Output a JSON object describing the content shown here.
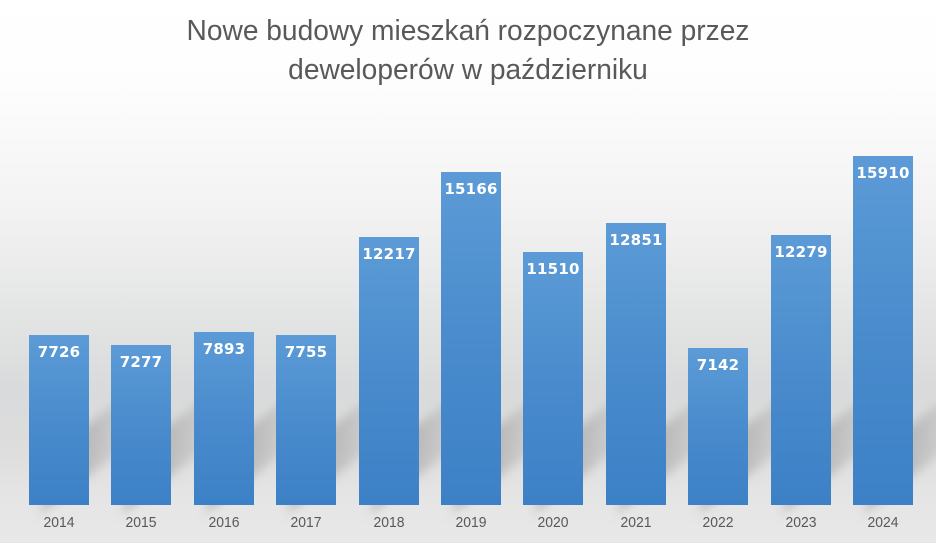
{
  "chart_data": {
    "type": "bar",
    "title": "Nowe budowy mieszkań rozpoczynane przez deweloperów w październiku",
    "title_lines": [
      "Nowe budowy mieszkań rozpoczynane przez",
      "deweloperów w październiku"
    ],
    "categories": [
      "2014",
      "2015",
      "2016",
      "2017",
      "2018",
      "2019",
      "2020",
      "2021",
      "2022",
      "2023",
      "2024"
    ],
    "values": [
      7726,
      7277,
      7893,
      7755,
      12217,
      15166,
      11510,
      12851,
      7142,
      12279,
      15910
    ],
    "series_name": "Nowe budowy mieszkań",
    "xlabel": "",
    "ylabel": "",
    "ylim": [
      0,
      16500
    ],
    "grid": false,
    "legend": "none",
    "value_labels": "inside-top",
    "colors": {
      "bar_top": "#5c9bd7",
      "bar_bottom": "#3c80c6",
      "value_label": "#ffffff",
      "axis_label": "#595959",
      "title": "#595959",
      "background_top": "#ffffff",
      "background_mid": "#d9dadb",
      "shadow": "#8a8a8a"
    }
  }
}
